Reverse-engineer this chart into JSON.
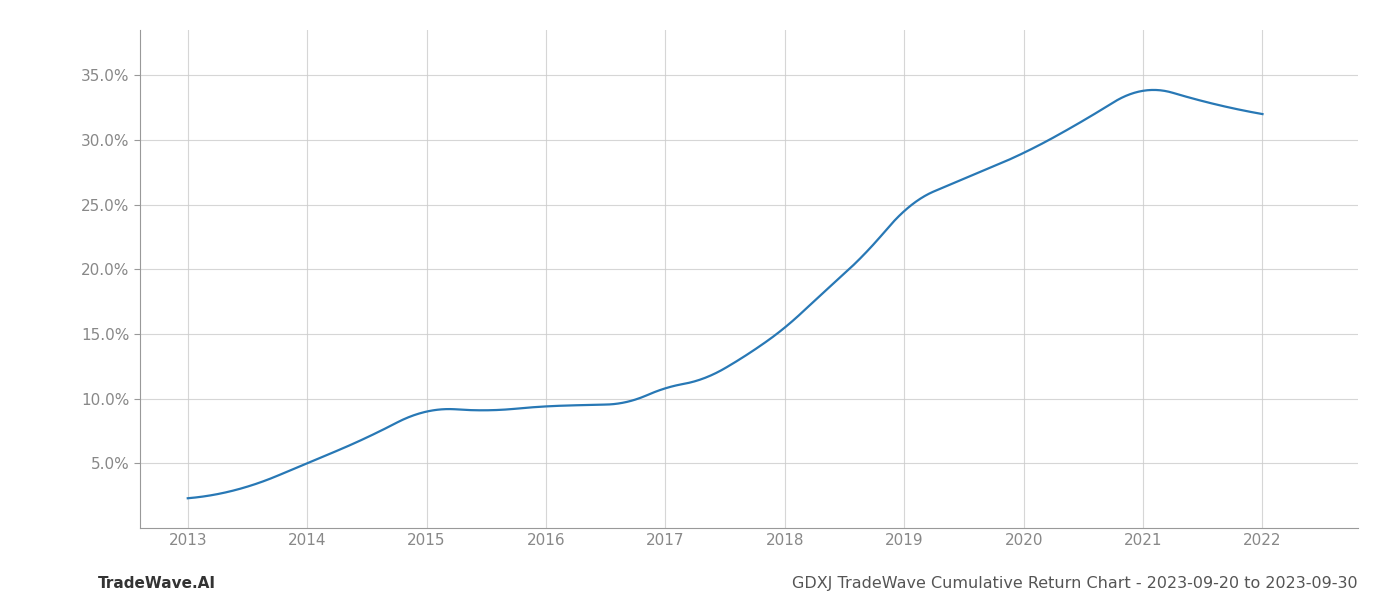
{
  "x": [
    2013,
    2013.5,
    2014,
    2014.5,
    2015,
    2015.5,
    2016,
    2016.3,
    2016.7,
    2017,
    2017.3,
    2017.7,
    2018,
    2018.3,
    2018.7,
    2019,
    2019.5,
    2020,
    2020.5,
    2021,
    2021.5,
    2022
  ],
  "y": [
    2.3,
    3.2,
    5.0,
    7.0,
    9.0,
    9.1,
    9.4,
    9.5,
    9.8,
    10.8,
    11.5,
    13.5,
    15.5,
    18.0,
    21.5,
    24.5,
    27.0,
    29.0,
    31.5,
    33.8,
    33.0,
    32.0
  ],
  "line_color": "#2878b5",
  "line_width": 1.6,
  "title": "GDXJ TradeWave Cumulative Return Chart - 2023-09-20 to 2023-09-30",
  "watermark": "TradeWave.AI",
  "xlim": [
    2012.6,
    2022.8
  ],
  "ylim": [
    0.0,
    38.5
  ],
  "yticks": [
    5.0,
    10.0,
    15.0,
    20.0,
    25.0,
    30.0,
    35.0
  ],
  "xticks": [
    2013,
    2014,
    2015,
    2016,
    2017,
    2018,
    2019,
    2020,
    2021,
    2022
  ],
  "background_color": "#ffffff",
  "grid_color": "#cccccc",
  "title_fontsize": 11.5,
  "watermark_fontsize": 11,
  "tick_fontsize": 11,
  "title_color": "#555555",
  "watermark_color": "#333333"
}
